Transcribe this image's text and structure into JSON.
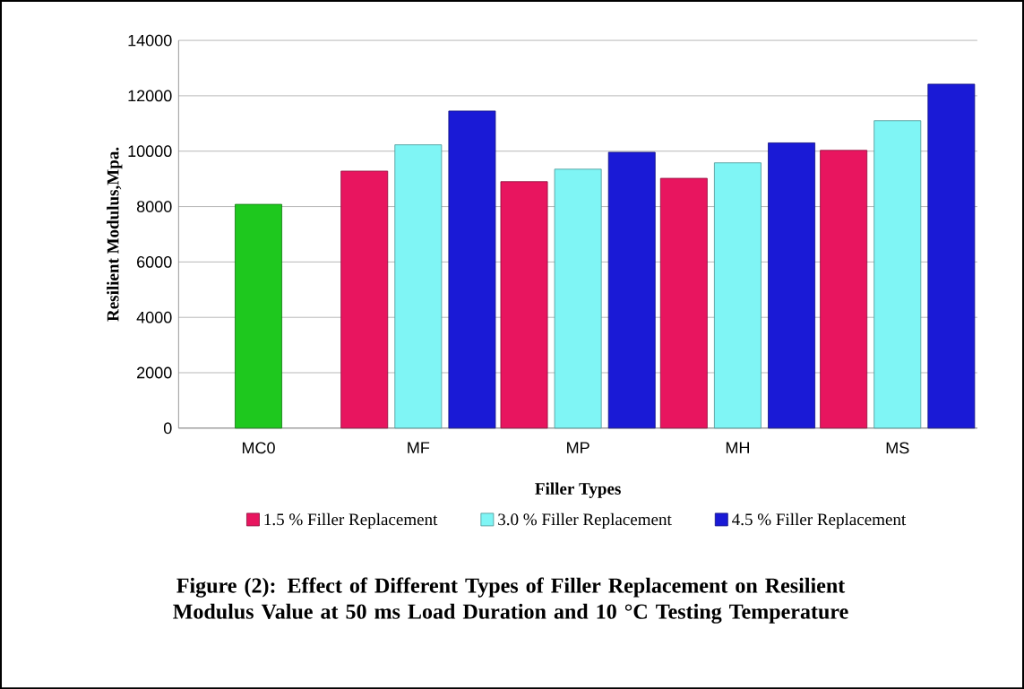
{
  "chart_data": {
    "type": "bar",
    "title": "Figure (2): Effect of Different Types of Filler Replacement on Resilient Modulus Value at 50 ms Load Duration and 10 °C Testing Temperature",
    "xlabel": "Filler Types",
    "ylabel": "Resilient Modulus,Mpa.",
    "categories": [
      "MC0",
      "MF",
      "MP",
      "MH",
      "MS"
    ],
    "series": [
      {
        "name": "1.5 % Filler Replacement",
        "color": "#e8155f",
        "values": [
          null,
          9280,
          8900,
          9020,
          10030
        ]
      },
      {
        "name": "3.0 % Filler Replacement",
        "color": "#7ff5f5",
        "colors": [
          "#1ec81e",
          "#7ff5f5",
          "#7ff5f5",
          "#7ff5f5",
          "#7ff5f5"
        ],
        "values": [
          8080,
          10230,
          9350,
          9580,
          11100
        ]
      },
      {
        "name": "4.5 % Filler Replacement",
        "color": "#1a1ad6",
        "values": [
          null,
          11450,
          9960,
          10300,
          12420
        ]
      }
    ],
    "ylim": [
      0,
      14000
    ],
    "yticks": [
      0,
      2000,
      4000,
      6000,
      8000,
      10000,
      12000,
      14000
    ],
    "grid": "y",
    "legend": "bottom"
  }
}
